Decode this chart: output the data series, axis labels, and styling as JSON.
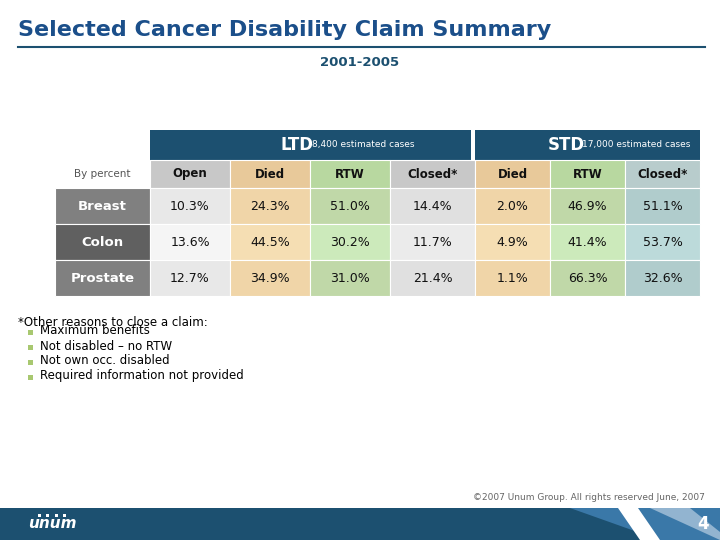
{
  "title": "Selected Cancer Disability Claim Summary",
  "subtitle": "2001-2005",
  "ltd_label": "LTD",
  "ltd_sub": "8,400 estimated cases",
  "std_label": "STD",
  "std_sub": "17,000 estimated cases",
  "by_percent": "By percent",
  "col_headers": [
    "Open",
    "Died",
    "RTW",
    "Closed*",
    "Died",
    "RTW",
    "Closed*"
  ],
  "row_labels": [
    "Breast",
    "Colon",
    "Prostate"
  ],
  "data": [
    [
      "10.3%",
      "24.3%",
      "51.0%",
      "14.4%",
      "2.0%",
      "46.9%",
      "51.1%"
    ],
    [
      "13.6%",
      "44.5%",
      "30.2%",
      "11.7%",
      "4.9%",
      "41.4%",
      "53.7%"
    ],
    [
      "12.7%",
      "34.9%",
      "31.0%",
      "21.4%",
      "1.1%",
      "66.3%",
      "32.6%"
    ]
  ],
  "footnote_header": "*Other reasons to close a claim:",
  "footnote_items": [
    "Maximum benefits",
    "Not disabled – no RTW",
    "Not own occ. disabled",
    "Required information not provided"
  ],
  "copyright": "©2007 Unum Group. All rights reserved June, 2007",
  "page_number": "4",
  "colors": {
    "title_blue": "#1B4F8A",
    "header_dark_blue": "#1C5070",
    "col_header_bg_gray": "#C8C8C8",
    "col_header_bg_tan": "#E8C99A",
    "col_header_bg_green_ltd": "#B8D4A0",
    "col_header_bg_green_std": "#A8C890",
    "row_label_bg_1": "#808080",
    "row_label_bg_2": "#606060",
    "open_bg_1": "#E8E8E8",
    "open_bg_2": "#F8F8F8",
    "died_bg": "#F0D8B0",
    "rtw_ltd_bg_1": "#C8DDB8",
    "rtw_ltd_bg_2": "#D8EAC8",
    "closed_ltd_bg_1": "#E8E8E8",
    "closed_ltd_bg_2": "#F8F8F8",
    "died_std_bg_1": "#F0D8B0",
    "died_std_bg_2": "#F0D8B0",
    "rtw_std_bg_1": "#C8DDB8",
    "rtw_std_bg_2": "#D8EAC8",
    "closed_std_bg_1": "#B8CCCC",
    "closed_std_bg_2": "#C8DCDC",
    "footer_blue": "#1C5070",
    "divider_line": "#1C5070",
    "subtitle_color": "#1C5070",
    "bullet_color": "#A8C870"
  }
}
